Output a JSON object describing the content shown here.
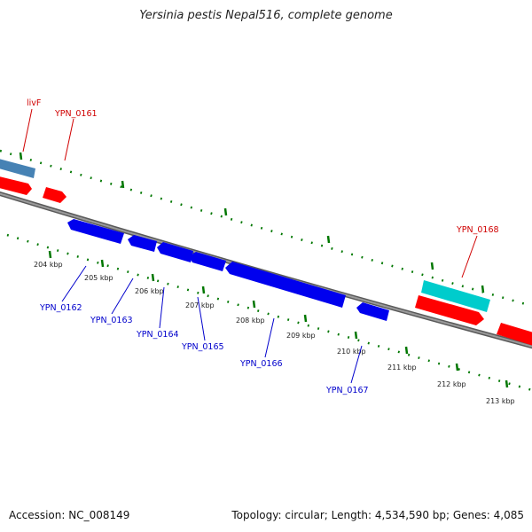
{
  "title": "Yersinia pestis Nepal516, complete genome",
  "footer": {
    "accession": "Accession: NC_008149",
    "summary": "Topology: circular; Length: 4,534,590 bp; Genes: 4,085"
  },
  "colors": {
    "backbone": "#808080",
    "forward_gene": "#ff0000",
    "reverse_gene": "#0000ff",
    "livF_gene": "#4682b4",
    "ypn0168_gene": "#00cccc",
    "tick": "#007700",
    "label_forward": "#d00000",
    "label_reverse": "#0000cc"
  },
  "tick_labels": [
    "204 kbp",
    "205 kbp",
    "206 kbp",
    "207 kbp",
    "208 kbp",
    "209 kbp",
    "210 kbp",
    "211 kbp",
    "212 kbp",
    "213 kbp"
  ],
  "gene_labels": {
    "forward": [
      "livF",
      "YPN_0161",
      "YPN_0168"
    ],
    "reverse": [
      "YPN_0162",
      "YPN_0163",
      "YPN_0164",
      "YPN_0165",
      "YPN_0166",
      "YPN_0167"
    ]
  }
}
